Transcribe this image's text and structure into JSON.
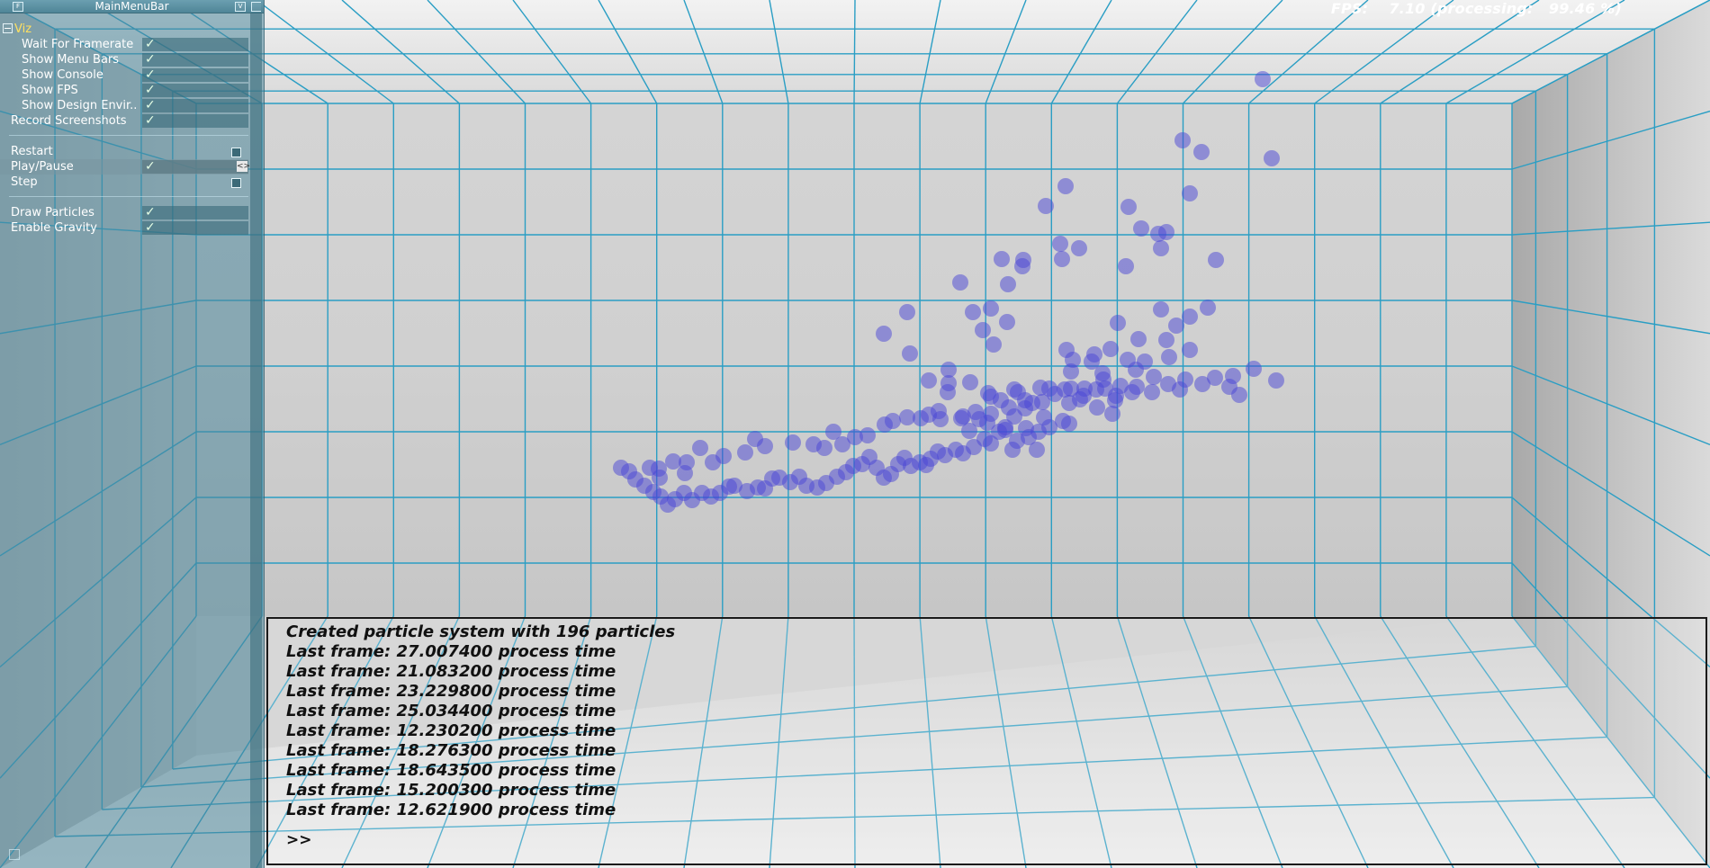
{
  "menu": {
    "title": "MainMenuBar",
    "group_label": "Viz",
    "viz_items": [
      {
        "label": "Wait For Framerate",
        "checked": true
      },
      {
        "label": "Show Menu Bars",
        "checked": true
      },
      {
        "label": "Show Console",
        "checked": true
      },
      {
        "label": "Show FPS",
        "checked": true
      },
      {
        "label": "Show Design Envir..",
        "checked": true
      }
    ],
    "record": {
      "label": "Record Screenshots",
      "checked": true
    },
    "controls": [
      {
        "label": "Restart",
        "type": "button"
      },
      {
        "label": "Play/Pause",
        "checked": true
      },
      {
        "label": "Step",
        "type": "button"
      }
    ],
    "options": [
      {
        "label": "Draw Particles",
        "checked": true
      },
      {
        "label": "Enable Gravity",
        "checked": true
      }
    ]
  },
  "fps": {
    "text": "FPS:    7.10 (processing:   99.46 %)"
  },
  "console": {
    "lines": [
      "Created particle system with 196 particles",
      "Last frame: 27.007400 process time",
      "Last frame: 21.083200 process time",
      "Last frame: 23.229800 process time",
      "Last frame: 25.034400 process time",
      "Last frame: 12.230200 process time",
      "Last frame: 18.276300 process time",
      "Last frame: 18.643500 process time",
      "Last frame: 15.200300 process time",
      "Last frame: 12.621900 process time"
    ],
    "prompt": ">>"
  },
  "colors": {
    "grid": "#2a9ec4",
    "particle": "#4a46d6",
    "panel": "#4d879b",
    "group_label": "#ffe060"
  },
  "icons": [
    "collapse-icon",
    "pin-icon",
    "minimize-icon",
    "checkmark-icon",
    "checkbox-icon",
    "spin-arrows-icon",
    "resize-grip-icon"
  ]
}
